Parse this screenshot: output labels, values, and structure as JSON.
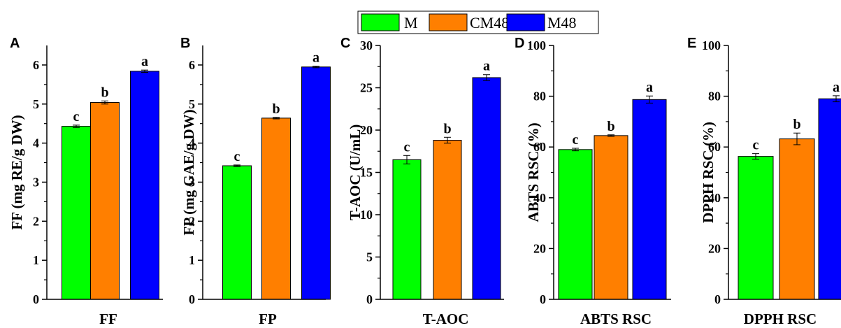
{
  "legend": {
    "placement": "top-center",
    "items": [
      {
        "label": "M",
        "color": "#00ff00"
      },
      {
        "label": "CM48",
        "color": "#ff7f00"
      },
      {
        "label": "M48",
        "color": "#0000ff"
      }
    ]
  },
  "chart_data": [
    {
      "panel_letter": "A",
      "type": "bar",
      "categories": [
        "M",
        "CM48",
        "M48"
      ],
      "values": [
        4.43,
        5.04,
        5.84
      ],
      "errors": [
        0.03,
        0.04,
        0.03
      ],
      "letters": [
        "c",
        "b",
        "a"
      ],
      "xlabel": "FF",
      "ylabel": "FF (mg RE/g DW)",
      "ylim": [
        0,
        6.5
      ],
      "yticks": [
        0,
        1,
        2,
        3,
        4,
        5,
        6
      ],
      "yticklabels": [
        "0",
        "1",
        "2",
        "3",
        "4",
        "5",
        "6"
      ],
      "grid": false
    },
    {
      "panel_letter": "B",
      "type": "bar",
      "categories": [
        "M",
        "CM48",
        "M48"
      ],
      "values": [
        3.42,
        4.64,
        5.95
      ],
      "errors": [
        0.02,
        0.02,
        0.02
      ],
      "letters": [
        "c",
        "b",
        "a"
      ],
      "xlabel": "FP",
      "ylabel": "FP (mg GAE/g DW)",
      "ylim": [
        0,
        6.5
      ],
      "yticks": [
        0,
        1,
        2,
        3,
        4,
        5,
        6
      ],
      "yticklabels": [
        "0",
        "1",
        "2",
        "3",
        "4",
        "5",
        "6"
      ],
      "grid": false
    },
    {
      "panel_letter": "C",
      "type": "bar",
      "categories": [
        "M",
        "CM48",
        "M48"
      ],
      "values": [
        16.5,
        18.8,
        26.2
      ],
      "errors": [
        0.5,
        0.35,
        0.35
      ],
      "letters": [
        "c",
        "b",
        "a"
      ],
      "xlabel": "T-AOC",
      "ylabel": "T-AOC (U/mL)",
      "ylim": [
        0,
        30
      ],
      "yticks": [
        0,
        5,
        10,
        15,
        20,
        25,
        30
      ],
      "yticklabels": [
        "0",
        "5",
        "10",
        "15",
        "20",
        "25",
        "30"
      ],
      "grid": false
    },
    {
      "panel_letter": "D",
      "type": "bar",
      "categories": [
        "M",
        "CM48",
        "M48"
      ],
      "values": [
        59,
        64.5,
        78.7
      ],
      "errors": [
        0.5,
        0.3,
        1.4
      ],
      "letters": [
        "c",
        "b",
        "a"
      ],
      "xlabel": "ABTS RSC",
      "ylabel": "ABTS RSC (%)",
      "ylim": [
        0,
        100
      ],
      "yticks": [
        0,
        20,
        40,
        60,
        80,
        100
      ],
      "yticklabels": [
        "0",
        "20",
        "40",
        "60",
        "80",
        "100"
      ],
      "grid": false
    },
    {
      "panel_letter": "E",
      "type": "bar",
      "categories": [
        "M",
        "CM48",
        "M48"
      ],
      "values": [
        56.3,
        63.2,
        79
      ],
      "errors": [
        1.1,
        2.3,
        1.2
      ],
      "letters": [
        "c",
        "b",
        "a"
      ],
      "xlabel": "DPPH RSC",
      "ylabel": "DPPH RSC (%)",
      "ylim": [
        0,
        100
      ],
      "yticks": [
        0,
        20,
        40,
        60,
        80,
        100
      ],
      "yticklabels": [
        "0",
        "20",
        "40",
        "60",
        "80",
        "100"
      ],
      "grid": false
    }
  ]
}
